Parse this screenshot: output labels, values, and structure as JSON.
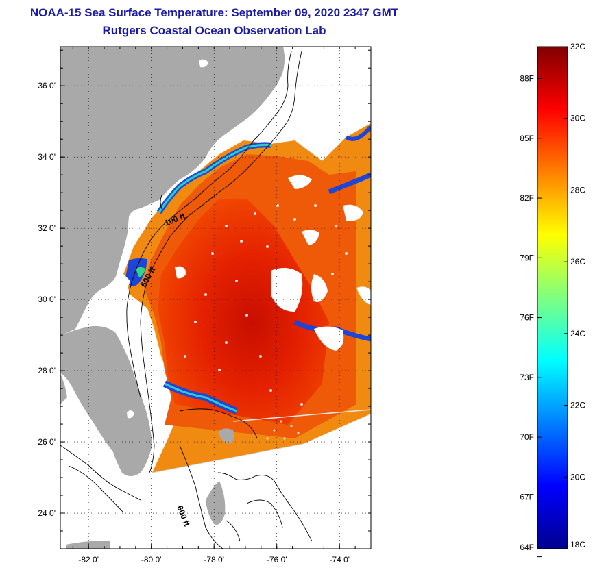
{
  "title": {
    "line1": "NOAA-15 Sea Surface Temperature:  September 09, 2020 2347 GMT",
    "line2": "Rutgers Coastal Ocean Observation Lab"
  },
  "map": {
    "lat_range": [
      23.0,
      37.1
    ],
    "lon_range": [
      -82.9,
      -73.0
    ],
    "lat_ticks": [
      {
        "value": 36,
        "label": "36 0'"
      },
      {
        "value": 34,
        "label": "34 0'"
      },
      {
        "value": 32,
        "label": "32 0'"
      },
      {
        "value": 30,
        "label": "30 0'"
      },
      {
        "value": 28,
        "label": "28 0'"
      },
      {
        "value": 26,
        "label": "26 0'"
      },
      {
        "value": 24,
        "label": "24 0'"
      }
    ],
    "lon_ticks": [
      {
        "value": -82,
        "label": "-82 0'"
      },
      {
        "value": -80,
        "label": "-80 0'"
      },
      {
        "value": -78,
        "label": "-78 0'"
      },
      {
        "value": -76,
        "label": "-76 0'"
      },
      {
        "value": -74,
        "label": "-74 0'"
      }
    ],
    "isobath_labels": [
      "100 ft",
      "600 ft",
      "600 ft"
    ],
    "colors": {
      "land": "#a9a9a9",
      "ocean_nodata": "#ffffff",
      "grid": "#000000"
    }
  },
  "colorbar": {
    "min_c": 18,
    "max_c": 32,
    "celsius_labels": [
      "32C",
      "30C",
      "28C",
      "26C",
      "24C",
      "22C",
      "20C",
      "18C"
    ],
    "fahrenheit_labels": [
      "88F",
      "85F",
      "82F",
      "79F",
      "76F",
      "73F",
      "70F",
      "67F",
      "64F"
    ],
    "colormap": "jet"
  }
}
